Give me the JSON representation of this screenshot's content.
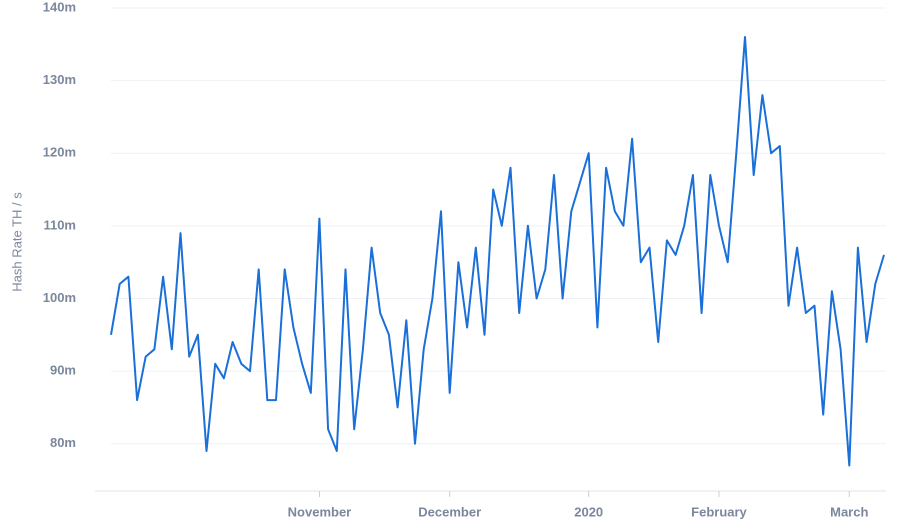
{
  "chart_data": {
    "type": "line",
    "y_label": "Hash Rate TH / s",
    "categories": [
      null,
      null,
      null,
      null,
      null,
      null,
      null,
      null,
      null,
      null,
      null,
      null,
      null,
      null,
      null,
      null,
      null,
      null,
      null,
      null,
      null,
      null,
      null,
      null,
      "November",
      null,
      null,
      null,
      null,
      null,
      null,
      null,
      null,
      null,
      null,
      null,
      null,
      null,
      null,
      "December",
      null,
      null,
      null,
      null,
      null,
      null,
      null,
      null,
      null,
      null,
      null,
      null,
      null,
      null,
      null,
      "2020",
      null,
      null,
      null,
      null,
      null,
      null,
      null,
      null,
      null,
      null,
      null,
      null,
      null,
      null,
      "February",
      null,
      null,
      null,
      null,
      null,
      null,
      null,
      null,
      null,
      null,
      null,
      null,
      null,
      null,
      "March",
      null,
      null,
      null,
      null
    ],
    "series": [
      {
        "name": "Hash Rate",
        "color": "#1a6fd9",
        "values": [
          95,
          102,
          103,
          86,
          92,
          93,
          103,
          93,
          109,
          92,
          95,
          79,
          91,
          89,
          94,
          91,
          90,
          104,
          86,
          86,
          104,
          96,
          91,
          87,
          111,
          82,
          79,
          104,
          82,
          93,
          107,
          98,
          95,
          85,
          97,
          80,
          93,
          100,
          112,
          87,
          105,
          96,
          107,
          95,
          115,
          110,
          118,
          98,
          110,
          100,
          104,
          117,
          100,
          112,
          116,
          120,
          96,
          118,
          112,
          110,
          122,
          105,
          107,
          94,
          108,
          106,
          110,
          117,
          98,
          117,
          110,
          105,
          120,
          136,
          117,
          128,
          120,
          121,
          99,
          107,
          98,
          99,
          84,
          101,
          93,
          77,
          107,
          94,
          102,
          106
        ]
      }
    ],
    "ylim": [
      75,
      140
    ],
    "yticks": [
      {
        "value": 80,
        "label": "80m"
      },
      {
        "value": 90,
        "label": "90m"
      },
      {
        "value": 100,
        "label": "100m"
      },
      {
        "value": 110,
        "label": "110m"
      },
      {
        "value": 120,
        "label": "120m"
      },
      {
        "value": 130,
        "label": "130m"
      },
      {
        "value": 140,
        "label": "140m"
      }
    ],
    "grid": true
  }
}
